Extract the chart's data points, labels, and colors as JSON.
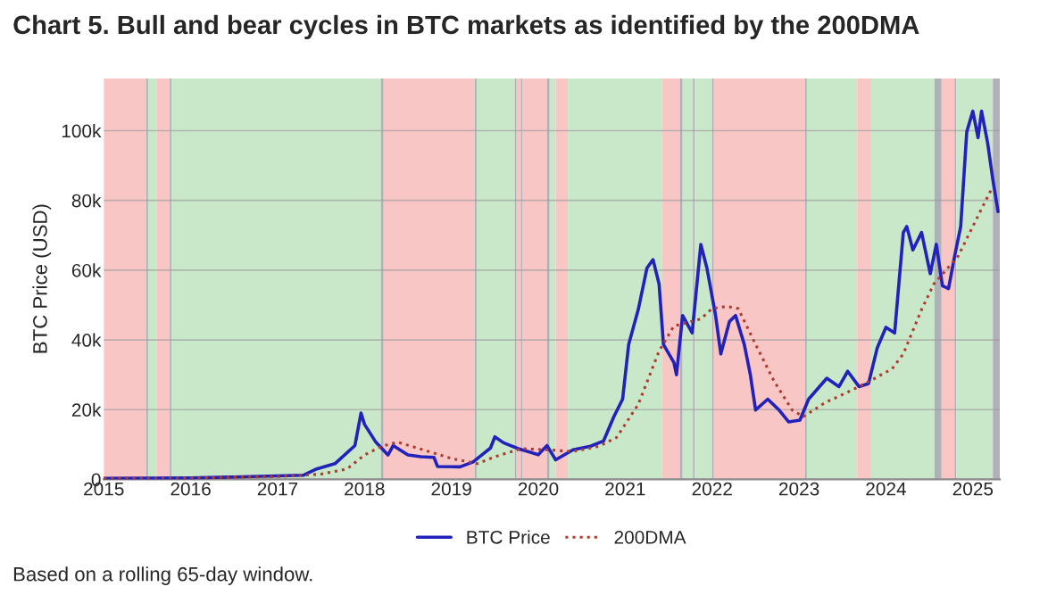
{
  "chart_data": {
    "type": "line",
    "title": "Chart 5. Bull and bear cycles in BTC markets as identified by the 200DMA",
    "ylabel": "BTC Price (USD)",
    "annotations": [
      "Based on a rolling 65-day window."
    ],
    "xlim": [
      2015,
      2025.31
    ],
    "xticks": [
      2015,
      2016,
      2017,
      2018,
      2019,
      2020,
      2021,
      2022,
      2023,
      2024,
      2025
    ],
    "ylim": [
      0,
      115000
    ],
    "yticks": [
      {
        "value": 0,
        "label": "0"
      },
      {
        "value": 20000,
        "label": "20k"
      },
      {
        "value": 40000,
        "label": "40k"
      },
      {
        "value": 60000,
        "label": "60k"
      },
      {
        "value": 80000,
        "label": "80k"
      },
      {
        "value": 100000,
        "label": "100k"
      }
    ],
    "grid": "y",
    "legend": "bottom",
    "marker": "none",
    "series": [
      {
        "name": "BTC Price",
        "color": "#2222bb",
        "line_style": "solid",
        "x": [
          2015.0,
          2016.0,
          2016.5,
          2017.0,
          2017.3,
          2017.45,
          2017.66,
          2017.89,
          2017.96,
          2018.0,
          2018.13,
          2018.27,
          2018.33,
          2018.5,
          2018.65,
          2018.8,
          2018.84,
          2019.1,
          2019.25,
          2019.45,
          2019.5,
          2019.6,
          2019.77,
          2020.0,
          2020.1,
          2020.2,
          2020.4,
          2020.6,
          2020.75,
          2020.87,
          2020.97,
          2021.04,
          2021.15,
          2021.25,
          2021.32,
          2021.39,
          2021.44,
          2021.56,
          2021.59,
          2021.66,
          2021.77,
          2021.87,
          2021.94,
          2022.04,
          2022.1,
          2022.2,
          2022.27,
          2022.37,
          2022.44,
          2022.5,
          2022.64,
          2022.77,
          2022.88,
          2023.01,
          2023.11,
          2023.32,
          2023.46,
          2023.56,
          2023.69,
          2023.8,
          2023.9,
          2024.0,
          2024.1,
          2024.2,
          2024.24,
          2024.31,
          2024.41,
          2024.51,
          2024.58,
          2024.65,
          2024.72,
          2024.79,
          2024.86,
          2024.93,
          2025.0,
          2025.06,
          2025.1,
          2025.17,
          2025.23,
          2025.29
        ],
        "values": [
          300,
          400,
          700,
          1000,
          1200,
          3000,
          4500,
          9700,
          19000,
          15800,
          10700,
          7000,
          9700,
          7000,
          6500,
          6300,
          3700,
          3600,
          5000,
          9000,
          12200,
          10500,
          8800,
          7100,
          9700,
          5600,
          8500,
          9500,
          11000,
          18000,
          23000,
          38700,
          48700,
          60600,
          63000,
          56000,
          38700,
          33500,
          30000,
          47000,
          42000,
          67400,
          60600,
          47000,
          36000,
          45300,
          47000,
          38700,
          30000,
          19900,
          23000,
          19900,
          16500,
          17000,
          23000,
          29000,
          26600,
          31000,
          26600,
          27500,
          37700,
          43600,
          42000,
          70800,
          72500,
          65800,
          70800,
          59000,
          67400,
          55500,
          54700,
          64000,
          72500,
          99700,
          105600,
          98000,
          105600,
          96500,
          86000,
          76800
        ]
      },
      {
        "name": "200DMA",
        "color": "#b03a2e",
        "line_style": "dotted",
        "x": [
          2015.0,
          2016.0,
          2017.0,
          2017.5,
          2017.8,
          2018.0,
          2018.2,
          2018.38,
          2018.7,
          2019.0,
          2019.3,
          2019.5,
          2019.8,
          2020.1,
          2020.4,
          2020.7,
          2020.9,
          2021.15,
          2021.39,
          2021.56,
          2021.87,
          2022.0,
          2022.17,
          2022.3,
          2022.5,
          2022.71,
          2022.92,
          2023.05,
          2023.3,
          2023.6,
          2023.8,
          2024.07,
          2024.2,
          2024.41,
          2024.55,
          2024.83,
          2025.1,
          2025.23
        ],
        "values": [
          300,
          400,
          800,
          1500,
          3000,
          7000,
          9500,
          10700,
          8300,
          6000,
          4500,
          6500,
          8800,
          8500,
          8000,
          9500,
          12000,
          21500,
          36800,
          44000,
          46000,
          49000,
          49600,
          49000,
          38700,
          28300,
          19900,
          18000,
          22000,
          25500,
          28000,
          31700,
          36000,
          48700,
          56000,
          64000,
          77600,
          84000
        ]
      }
    ],
    "bands": [
      {
        "axis": "x",
        "from": 2015.0,
        "to": 2015.49,
        "color": "#f9c6c6"
      },
      {
        "axis": "x",
        "from": 2015.49,
        "to": 2015.51,
        "color": "#b0b0b8"
      },
      {
        "axis": "x",
        "from": 2015.51,
        "to": 2015.61,
        "color": "#c9e7c9"
      },
      {
        "axis": "x",
        "from": 2015.61,
        "to": 2015.76,
        "color": "#f9c6c6"
      },
      {
        "axis": "x",
        "from": 2015.76,
        "to": 2015.78,
        "color": "#b0b0b8"
      },
      {
        "axis": "x",
        "from": 2015.78,
        "to": 2018.19,
        "color": "#c9e7c9"
      },
      {
        "axis": "x",
        "from": 2018.19,
        "to": 2018.22,
        "color": "#b0b0b8"
      },
      {
        "axis": "x",
        "from": 2018.22,
        "to": 2019.27,
        "color": "#f9c6c6"
      },
      {
        "axis": "x",
        "from": 2019.27,
        "to": 2019.29,
        "color": "#b0b0b8"
      },
      {
        "axis": "x",
        "from": 2019.29,
        "to": 2019.73,
        "color": "#c9e7c9"
      },
      {
        "axis": "x",
        "from": 2019.73,
        "to": 2019.75,
        "color": "#b0b0b8"
      },
      {
        "axis": "x",
        "from": 2019.75,
        "to": 2019.8,
        "color": "#f9c6c6"
      },
      {
        "axis": "x",
        "from": 2019.8,
        "to": 2019.82,
        "color": "#b0b0b8"
      },
      {
        "axis": "x",
        "from": 2019.82,
        "to": 2020.1,
        "color": "#f9c6c6"
      },
      {
        "axis": "x",
        "from": 2020.1,
        "to": 2020.13,
        "color": "#b0b0b8"
      },
      {
        "axis": "x",
        "from": 2020.13,
        "to": 2020.2,
        "color": "#c9e7c9"
      },
      {
        "axis": "x",
        "from": 2020.2,
        "to": 2020.34,
        "color": "#f9c6c6"
      },
      {
        "axis": "x",
        "from": 2020.34,
        "to": 2021.42,
        "color": "#c9e7c9"
      },
      {
        "axis": "x",
        "from": 2021.42,
        "to": 2021.63,
        "color": "#f9c6c6"
      },
      {
        "axis": "x",
        "from": 2021.63,
        "to": 2021.66,
        "color": "#b0b0b8"
      },
      {
        "axis": "x",
        "from": 2021.66,
        "to": 2021.78,
        "color": "#c9e7c9"
      },
      {
        "axis": "x",
        "from": 2021.78,
        "to": 2021.8,
        "color": "#b0b0b8"
      },
      {
        "axis": "x",
        "from": 2021.8,
        "to": 2022.0,
        "color": "#c9e7c9"
      },
      {
        "axis": "x",
        "from": 2022.0,
        "to": 2022.02,
        "color": "#b0b0b8"
      },
      {
        "axis": "x",
        "from": 2022.02,
        "to": 2023.07,
        "color": "#f9c6c6"
      },
      {
        "axis": "x",
        "from": 2023.07,
        "to": 2023.09,
        "color": "#b0b0b8"
      },
      {
        "axis": "x",
        "from": 2023.09,
        "to": 2023.67,
        "color": "#c9e7c9"
      },
      {
        "axis": "x",
        "from": 2023.67,
        "to": 2023.83,
        "color": "#f9c6c6"
      },
      {
        "axis": "x",
        "from": 2023.83,
        "to": 2024.56,
        "color": "#c9e7c9"
      },
      {
        "axis": "x",
        "from": 2024.56,
        "to": 2024.64,
        "color": "#b0b0b8"
      },
      {
        "axis": "x",
        "from": 2024.64,
        "to": 2024.79,
        "color": "#f9c6c6"
      },
      {
        "axis": "x",
        "from": 2024.79,
        "to": 2024.81,
        "color": "#b0b0b8"
      },
      {
        "axis": "x",
        "from": 2024.81,
        "to": 2025.23,
        "color": "#c9e7c9"
      },
      {
        "axis": "x",
        "from": 2025.23,
        "to": 2025.31,
        "color": "#b0b0b8"
      }
    ]
  }
}
